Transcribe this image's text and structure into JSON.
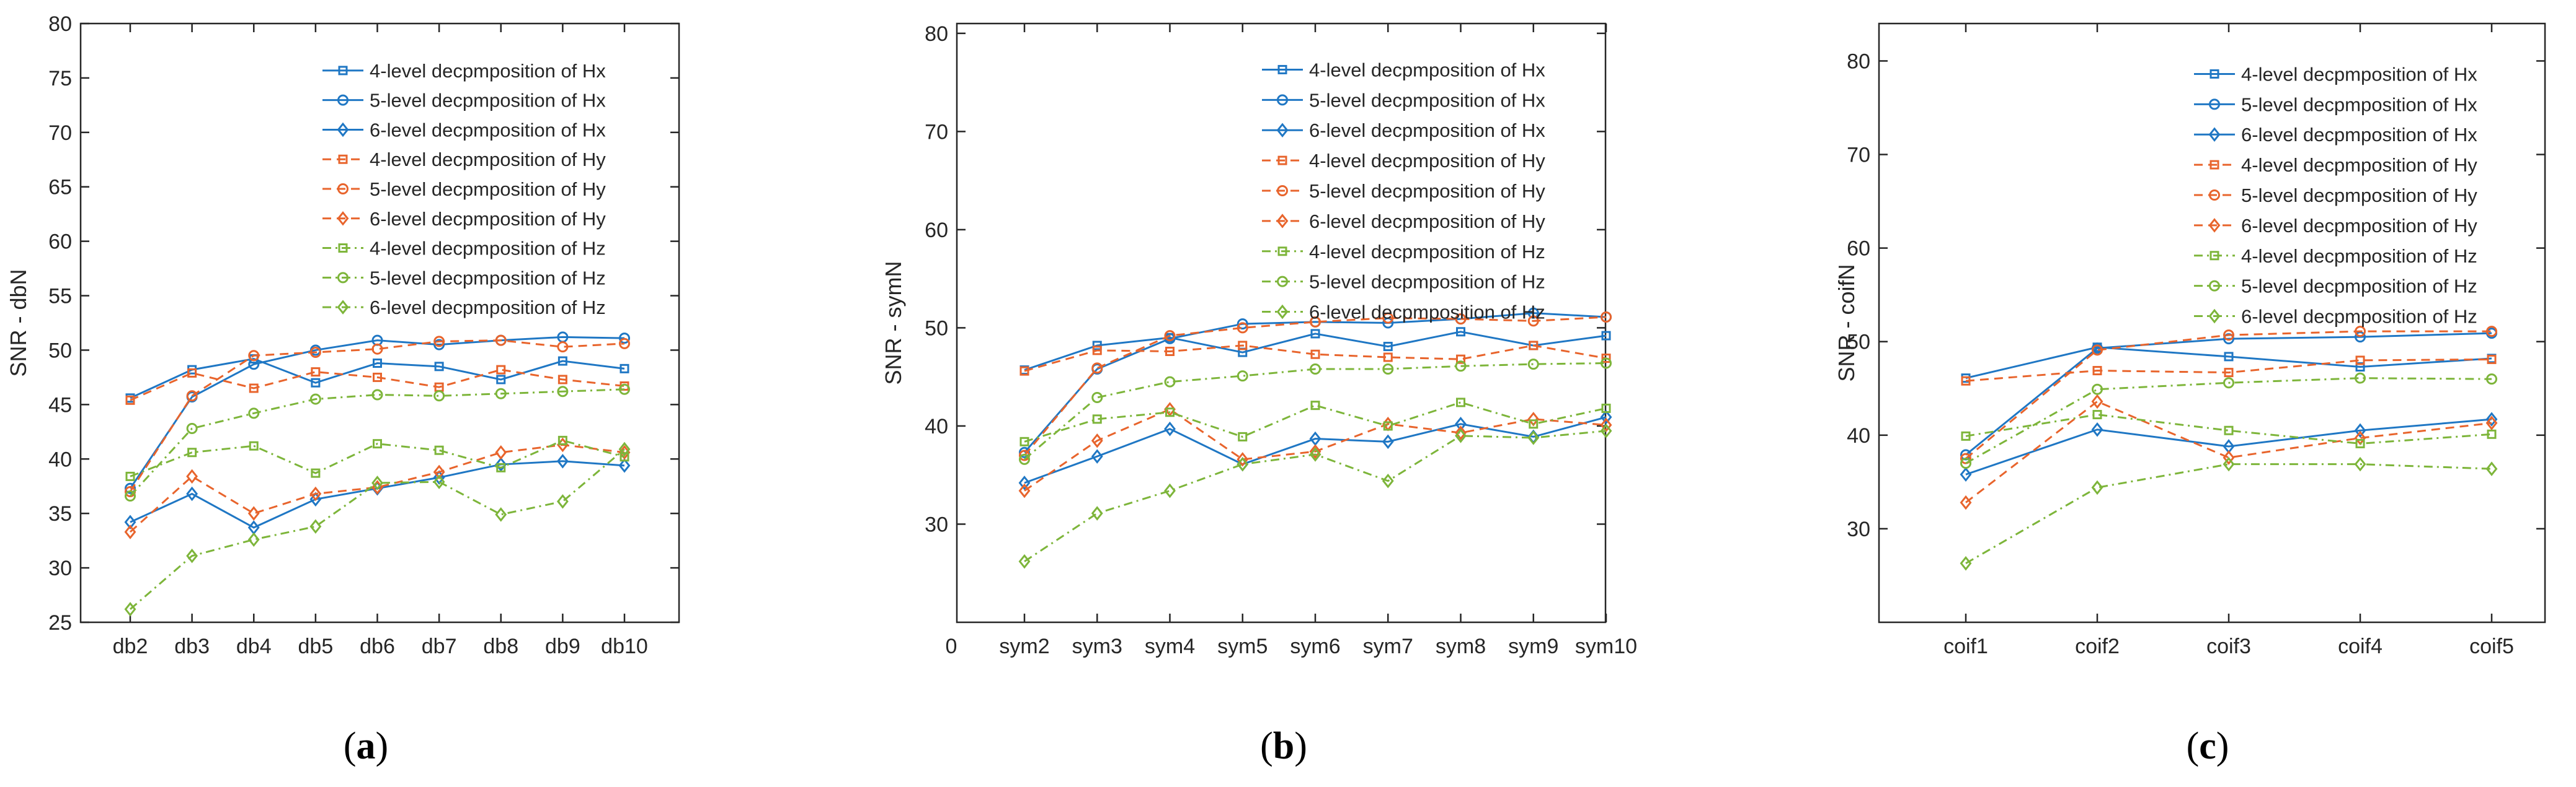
{
  "colors": {
    "Hx": "#1f77c4",
    "Hy": "#e8642c",
    "Hz": "#7db53a",
    "axis": "#262626"
  },
  "chart_data": [
    {
      "type": "line",
      "caption": "(a)",
      "caption_letter": "a",
      "ylabel": "SNR - dbN",
      "xlabel": "",
      "categories": [
        "db2",
        "db3",
        "db4",
        "db5",
        "db6",
        "db7",
        "db8",
        "db9",
        "db10"
      ],
      "ylim": [
        25,
        80
      ],
      "yticks": [
        25,
        30,
        35,
        40,
        45,
        50,
        55,
        60,
        65,
        70,
        75,
        80
      ],
      "ytick_labels": [
        "25",
        "30",
        "35",
        "40",
        "45",
        "50",
        "55",
        "60",
        "65",
        "70",
        "75",
        "80"
      ],
      "legend_position": "top-right",
      "series": [
        {
          "name": "4-level decpmposition of Hx",
          "group": "Hx",
          "marker": "square",
          "dash": "solid",
          "values": [
            45.6,
            48.2,
            49.2,
            47.0,
            48.8,
            48.5,
            47.3,
            49.0,
            48.3
          ]
        },
        {
          "name": "5-level decpmposition of Hx",
          "group": "Hx",
          "marker": "circle",
          "dash": "solid",
          "values": [
            37.3,
            45.7,
            48.7,
            50.0,
            50.9,
            50.5,
            50.9,
            51.2,
            51.1
          ]
        },
        {
          "name": "6-level decpmposition of Hx",
          "group": "Hx",
          "marker": "diamond",
          "dash": "solid",
          "values": [
            34.2,
            36.8,
            33.7,
            36.3,
            37.3,
            38.3,
            39.5,
            39.8,
            39.4
          ]
        },
        {
          "name": "4-level decpmposition of Hy",
          "group": "Hy",
          "marker": "square",
          "dash": "dashed",
          "values": [
            45.4,
            47.9,
            46.5,
            48.0,
            47.5,
            46.6,
            48.2,
            47.3,
            46.7
          ]
        },
        {
          "name": "5-level decpmposition of Hy",
          "group": "Hy",
          "marker": "circle",
          "dash": "dashed",
          "values": [
            37.0,
            45.8,
            49.5,
            49.8,
            50.1,
            50.8,
            50.9,
            50.3,
            50.6
          ]
        },
        {
          "name": "6-level decpmposition of Hy",
          "group": "Hy",
          "marker": "diamond",
          "dash": "dashed",
          "values": [
            33.3,
            38.4,
            35.0,
            36.8,
            37.4,
            38.8,
            40.6,
            41.3,
            40.6
          ]
        },
        {
          "name": "4-level decpmposition of Hz",
          "group": "Hz",
          "marker": "square",
          "dash": "dashdot",
          "values": [
            38.4,
            40.6,
            41.2,
            38.7,
            41.4,
            40.8,
            39.2,
            41.7,
            40.2
          ]
        },
        {
          "name": "5-level decpmposition of Hz",
          "group": "Hz",
          "marker": "circle",
          "dash": "dashdot",
          "values": [
            36.6,
            42.8,
            44.2,
            45.5,
            45.9,
            45.8,
            46.0,
            46.2,
            46.4
          ]
        },
        {
          "name": "6-level decpmposition of Hz",
          "group": "Hz",
          "marker": "diamond",
          "dash": "dashdot",
          "values": [
            26.2,
            31.1,
            32.6,
            33.8,
            37.8,
            37.9,
            34.9,
            36.1,
            40.9
          ]
        }
      ]
    },
    {
      "type": "line",
      "caption": "(b)",
      "caption_letter": "b",
      "ylabel": "SNR - symN",
      "xlabel": "",
      "categories": [
        "sym2",
        "sym3",
        "sym4",
        "sym5",
        "sym6",
        "sym7",
        "sym8",
        "sym9",
        "sym10"
      ],
      "ylim": [
        20,
        81
      ],
      "yticks": [
        30,
        40,
        50,
        60,
        70,
        80
      ],
      "ytick_labels": [
        "30",
        "40",
        "50",
        "60",
        "70",
        "80"
      ],
      "xlim_origin_label": "0",
      "legend_position": "top-right",
      "series": [
        {
          "name": "4-level decpmposition of Hx",
          "group": "Hx",
          "marker": "square",
          "dash": "solid",
          "values": [
            45.7,
            48.2,
            49.0,
            47.5,
            49.4,
            48.1,
            49.6,
            48.2,
            49.2
          ]
        },
        {
          "name": "5-level decpmposition of Hx",
          "group": "Hx",
          "marker": "circle",
          "dash": "solid",
          "values": [
            37.3,
            45.8,
            48.9,
            50.4,
            50.6,
            50.5,
            50.9,
            51.5,
            51.1
          ]
        },
        {
          "name": "6-level decpmposition of Hx",
          "group": "Hx",
          "marker": "diamond",
          "dash": "solid",
          "values": [
            34.2,
            36.9,
            39.7,
            36.1,
            38.7,
            38.4,
            40.2,
            38.9,
            40.9
          ]
        },
        {
          "name": "4-level decpmposition of Hy",
          "group": "Hy",
          "marker": "square",
          "dash": "dashed",
          "values": [
            45.6,
            47.7,
            47.6,
            48.2,
            47.3,
            47.0,
            46.8,
            48.2,
            46.9
          ]
        },
        {
          "name": "5-level decpmposition of Hy",
          "group": "Hy",
          "marker": "circle",
          "dash": "dashed",
          "values": [
            37.0,
            45.9,
            49.2,
            50.0,
            50.6,
            51.0,
            50.9,
            50.7,
            51.1
          ]
        },
        {
          "name": "6-level decpmposition of Hy",
          "group": "Hy",
          "marker": "diamond",
          "dash": "dashed",
          "values": [
            33.4,
            38.5,
            41.7,
            36.6,
            37.4,
            40.2,
            39.3,
            40.7,
            40.1
          ]
        },
        {
          "name": "4-level decpmposition of Hz",
          "group": "Hz",
          "marker": "square",
          "dash": "dashdot",
          "values": [
            38.4,
            40.7,
            41.4,
            38.9,
            42.1,
            40.0,
            42.4,
            40.2,
            41.8
          ]
        },
        {
          "name": "5-level decpmposition of Hz",
          "group": "Hz",
          "marker": "circle",
          "dash": "dashdot",
          "values": [
            36.6,
            42.9,
            44.5,
            45.1,
            45.8,
            45.8,
            46.1,
            46.3,
            46.4
          ]
        },
        {
          "name": "6-level decpmposition of Hz",
          "group": "Hz",
          "marker": "diamond",
          "dash": "dashdot",
          "values": [
            26.2,
            31.1,
            33.4,
            36.1,
            37.1,
            34.4,
            39.0,
            38.8,
            39.5
          ]
        }
      ]
    },
    {
      "type": "line",
      "caption": "(c)",
      "caption_letter": "c",
      "ylabel": "SNR - coifN",
      "xlabel": "",
      "categories": [
        "coif1",
        "coif2",
        "coif3",
        "coif4",
        "coif5"
      ],
      "ylim": [
        20,
        84
      ],
      "yticks": [
        30,
        40,
        50,
        60,
        70,
        80
      ],
      "ytick_labels": [
        "30",
        "40",
        "50",
        "60",
        "70",
        "80"
      ],
      "legend_position": "top-right",
      "series": [
        {
          "name": "4-level decpmposition of Hx",
          "group": "Hx",
          "marker": "square",
          "dash": "solid",
          "values": [
            46.1,
            49.4,
            48.4,
            47.3,
            48.2
          ]
        },
        {
          "name": "5-level decpmposition of Hx",
          "group": "Hx",
          "marker": "circle",
          "dash": "solid",
          "values": [
            37.9,
            49.3,
            50.3,
            50.5,
            50.9
          ]
        },
        {
          "name": "6-level decpmposition of Hx",
          "group": "Hx",
          "marker": "diamond",
          "dash": "solid",
          "values": [
            35.8,
            40.6,
            38.8,
            40.5,
            41.7
          ]
        },
        {
          "name": "4-level decpmposition of Hy",
          "group": "Hy",
          "marker": "square",
          "dash": "dashed",
          "values": [
            45.8,
            46.9,
            46.7,
            48.0,
            48.1
          ]
        },
        {
          "name": "5-level decpmposition of Hy",
          "group": "Hy",
          "marker": "circle",
          "dash": "dashed",
          "values": [
            37.5,
            49.1,
            50.7,
            51.1,
            51.1
          ]
        },
        {
          "name": "6-level decpmposition of Hy",
          "group": "Hy",
          "marker": "diamond",
          "dash": "dashed",
          "values": [
            32.8,
            43.6,
            37.6,
            39.7,
            41.3
          ]
        },
        {
          "name": "4-level decpmposition of Hz",
          "group": "Hz",
          "marker": "square",
          "dash": "dashdot",
          "values": [
            39.9,
            42.2,
            40.5,
            39.1,
            40.1
          ]
        },
        {
          "name": "5-level decpmposition of Hz",
          "group": "Hz",
          "marker": "circle",
          "dash": "dashdot",
          "values": [
            37.0,
            44.9,
            45.6,
            46.1,
            46.0
          ]
        },
        {
          "name": "6-level decpmposition of Hz",
          "group": "Hz",
          "marker": "diamond",
          "dash": "dashdot",
          "values": [
            26.3,
            34.4,
            36.9,
            36.9,
            36.4
          ]
        }
      ]
    }
  ]
}
